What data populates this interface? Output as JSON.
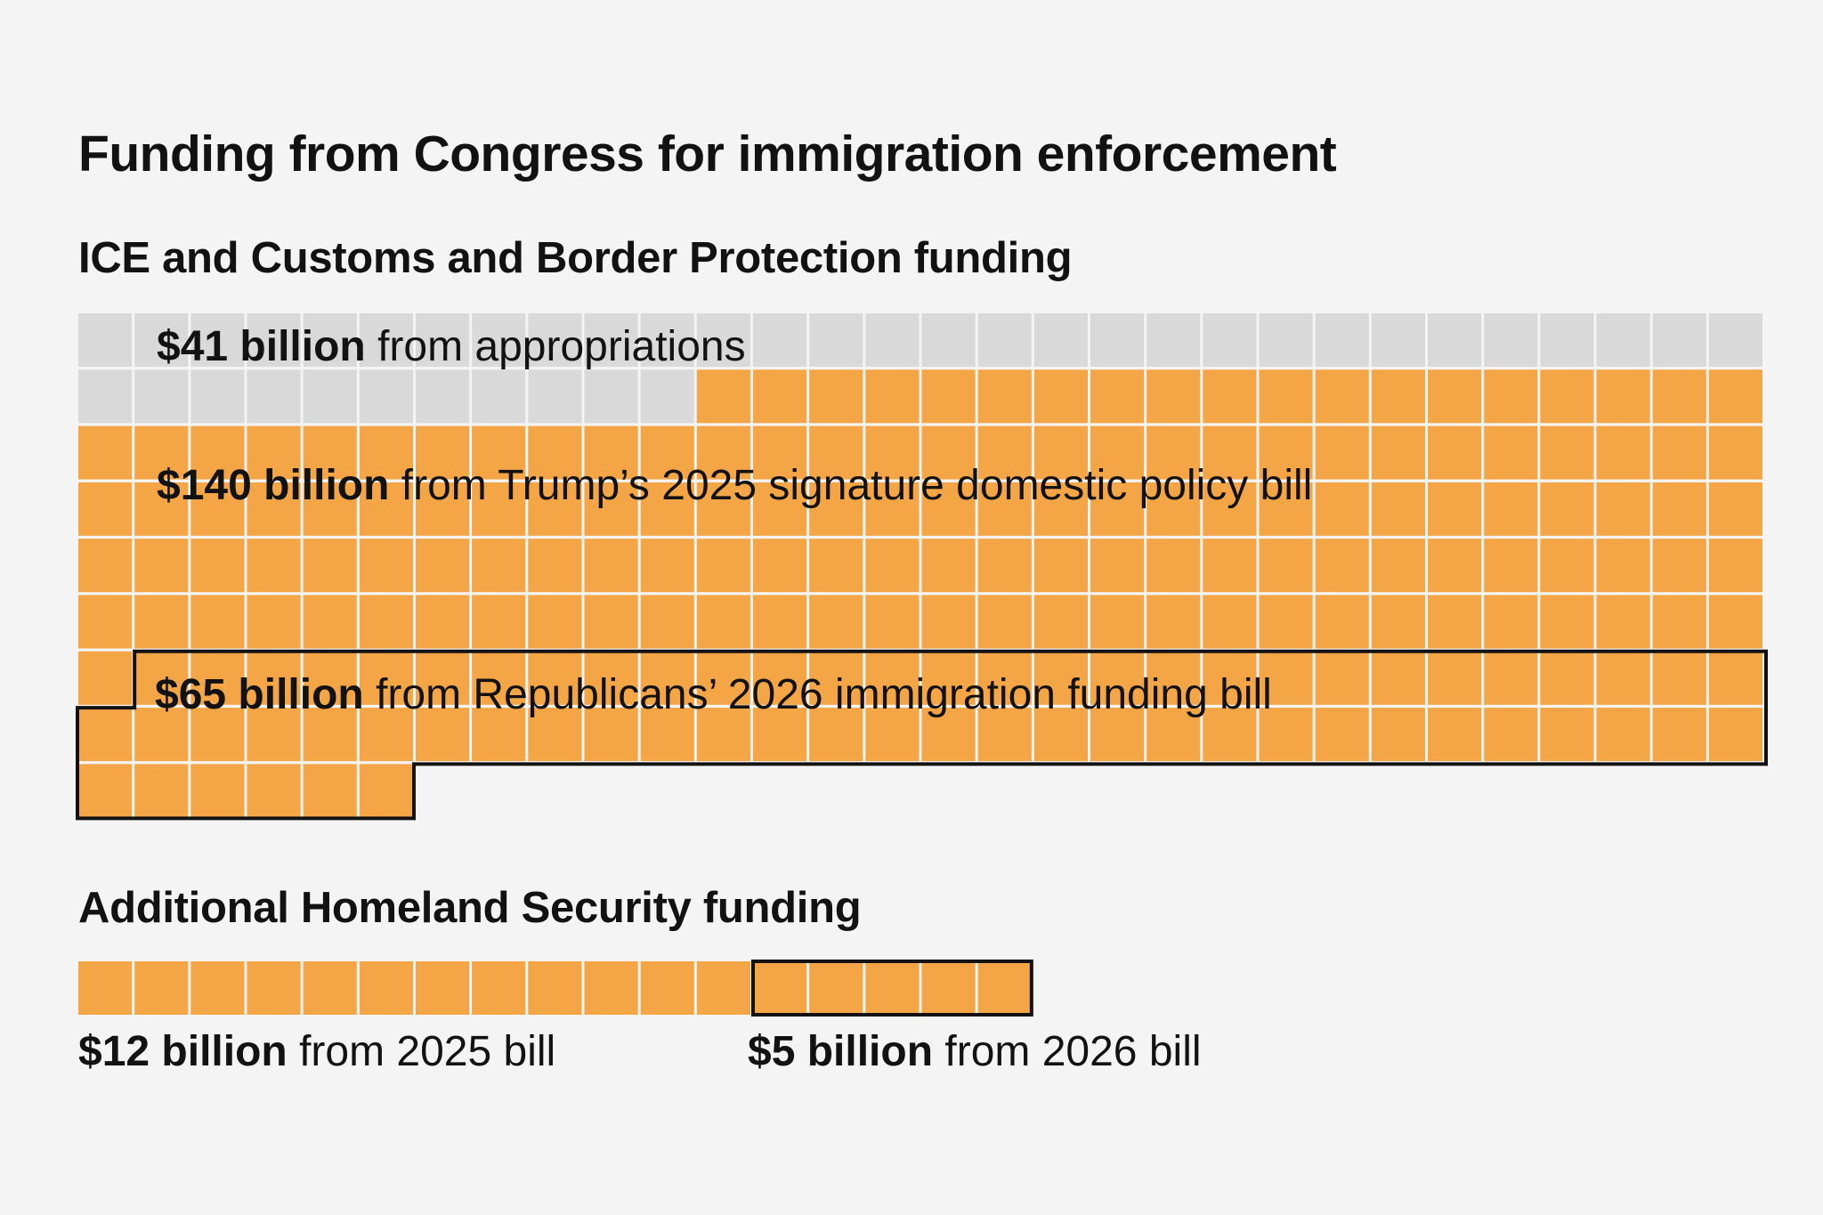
{
  "title": "Funding from Congress for immigration enforcement",
  "sections": [
    {
      "title": "ICE and Customs and Border Protection funding",
      "segments": [
        {
          "amount": "$41 billion",
          "description": "from appropriations"
        },
        {
          "amount": "$140 billion",
          "description": "from Trump’s 2025 signature domestic policy bill"
        },
        {
          "amount": "$65 billion",
          "description": "from Republicans’ 2026 immigration funding bill"
        }
      ]
    },
    {
      "title": "Additional Homeland Security funding",
      "segments": [
        {
          "amount": "$12 billion",
          "description": "from 2025 bill"
        },
        {
          "amount": "$5 billion",
          "description": "from 2026 bill"
        }
      ]
    }
  ],
  "chart_data": [
    {
      "type": "waffle",
      "title": "ICE and Customs and Border Protection funding",
      "unit": "$1 billion per square",
      "columns": 30,
      "series": [
        {
          "name": "$41 billion from appropriations",
          "value": 41,
          "color": "#d9d9d9",
          "outlined": false
        },
        {
          "name": "$140 billion from Trump’s 2025 signature domestic policy bill",
          "value": 140,
          "color": "#f4a545",
          "outlined": false
        },
        {
          "name": "$65 billion from Republicans’ 2026 immigration funding bill",
          "value": 65,
          "color": "#f4a545",
          "outlined": true
        }
      ]
    },
    {
      "type": "waffle",
      "title": "Additional Homeland Security funding",
      "unit": "$1 billion per square",
      "columns": 30,
      "series": [
        {
          "name": "$12 billion from 2025 bill",
          "value": 12,
          "color": "#f4a545",
          "outlined": false
        },
        {
          "name": "$5 billion from 2026 bill",
          "value": 5,
          "color": "#f4a545",
          "outlined": true
        }
      ]
    }
  ]
}
